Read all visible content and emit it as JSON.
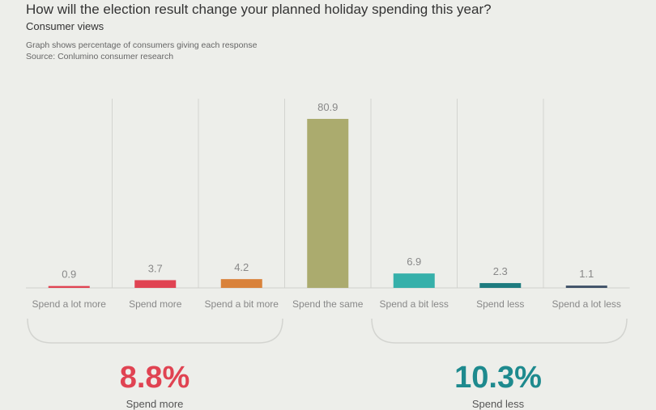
{
  "header": {
    "title": "How will the election result change your planned holiday spending this year?",
    "subtitle": "Consumer views",
    "note": "Graph shows percentage of consumers giving each response",
    "source": "Source: Conlumino consumer research"
  },
  "chart_data": {
    "type": "bar",
    "title": "How will the election result change your planned holiday spending this year?",
    "subtitle": "Consumer views",
    "categories": [
      "Spend a lot more",
      "Spend more",
      "Spend a bit more",
      "Spend the same",
      "Spend a bit less",
      "Spend less",
      "Spend a lot less"
    ],
    "values": [
      0.9,
      3.7,
      4.2,
      80.9,
      6.9,
      2.3,
      1.1
    ],
    "value_labels": [
      "0.9",
      "3.7",
      "4.2",
      "80.9",
      "6.9",
      "2.3",
      "1.1"
    ],
    "colors": [
      "#e04352",
      "#e04352",
      "#d9823a",
      "#abab6e",
      "#36b0aa",
      "#1e7b7f",
      "#3d4f66"
    ],
    "xlabel": "",
    "ylabel": "",
    "ylim": [
      0,
      88
    ],
    "grid": "vertical",
    "groups": [
      {
        "total": "8.8%",
        "label": "Spend more",
        "color": "#e04352"
      },
      {
        "total": "10.3%",
        "label": "Spend less",
        "color": "#1e8a8e"
      }
    ]
  }
}
